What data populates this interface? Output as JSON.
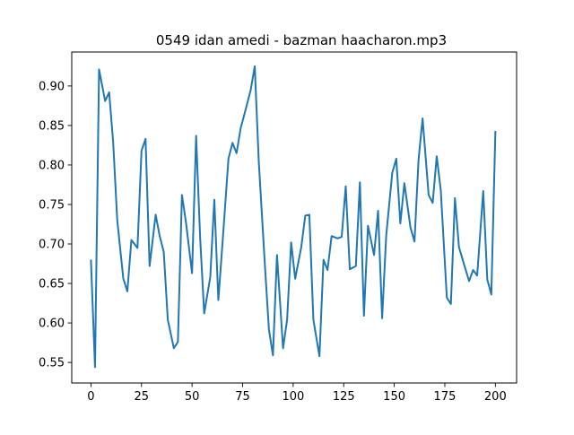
{
  "chart_data": {
    "type": "line",
    "title": "0549 idan amedi - bazman haacharon.mp3",
    "xlabel": "",
    "ylabel": "",
    "xlim": [
      -9.5,
      210.5
    ],
    "ylim": [
      0.524,
      0.943
    ],
    "x_ticks": [
      0,
      25,
      50,
      75,
      100,
      125,
      150,
      175,
      200
    ],
    "x_tick_labels": [
      "0",
      "25",
      "50",
      "75",
      "100",
      "125",
      "150",
      "175",
      "200"
    ],
    "y_ticks": [
      0.55,
      0.6,
      0.65,
      0.7,
      0.75,
      0.8,
      0.85,
      0.9
    ],
    "y_tick_labels": [
      "0.55",
      "0.60",
      "0.65",
      "0.70",
      "0.75",
      "0.80",
      "0.85",
      "0.90"
    ],
    "grid": false,
    "series": [
      {
        "color": "#1f77b4",
        "x": [
          0,
          2,
          4,
          7,
          9,
          11,
          13,
          16,
          18,
          20,
          23,
          25,
          27,
          29,
          32,
          34,
          36,
          38,
          41,
          43,
          45,
          47,
          50,
          52,
          54,
          56,
          59,
          61,
          63,
          65,
          68,
          70,
          72,
          74,
          77,
          79,
          81,
          83,
          86,
          88,
          90,
          92,
          95,
          97,
          99,
          101,
          104,
          106,
          108,
          110,
          113,
          115,
          117,
          119,
          122,
          124,
          126,
          128,
          131,
          133,
          135,
          137,
          140,
          142,
          144,
          146,
          149,
          151,
          153,
          155,
          158,
          160,
          162,
          164,
          167,
          169,
          171,
          173,
          176,
          178,
          180,
          182,
          185,
          187,
          189,
          191,
          194,
          196,
          198,
          200
        ],
        "y": [
          0.679,
          0.544,
          0.921,
          0.881,
          0.892,
          0.828,
          0.73,
          0.656,
          0.64,
          0.705,
          0.695,
          0.818,
          0.833,
          0.672,
          0.737,
          0.71,
          0.69,
          0.604,
          0.568,
          0.576,
          0.762,
          0.727,
          0.663,
          0.837,
          0.708,
          0.612,
          0.658,
          0.756,
          0.629,
          0.699,
          0.808,
          0.828,
          0.815,
          0.846,
          0.875,
          0.895,
          0.925,
          0.804,
          0.674,
          0.592,
          0.559,
          0.686,
          0.568,
          0.604,
          0.702,
          0.656,
          0.696,
          0.736,
          0.737,
          0.604,
          0.558,
          0.68,
          0.667,
          0.71,
          0.707,
          0.709,
          0.773,
          0.668,
          0.672,
          0.778,
          0.609,
          0.723,
          0.686,
          0.742,
          0.606,
          0.71,
          0.79,
          0.808,
          0.726,
          0.777,
          0.721,
          0.703,
          0.806,
          0.859,
          0.762,
          0.752,
          0.811,
          0.768,
          0.632,
          0.624,
          0.758,
          0.696,
          0.67,
          0.653,
          0.667,
          0.66,
          0.767,
          0.655,
          0.636,
          0.842
        ]
      }
    ]
  }
}
